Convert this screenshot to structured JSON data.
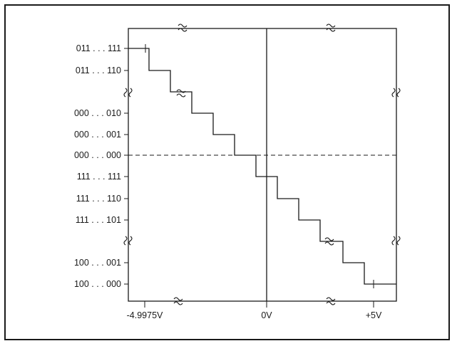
{
  "colors": {
    "ink": "#1a1a1a",
    "background": "#ffffff"
  },
  "y_codes": [
    {
      "code": "011 . . . 111"
    },
    {
      "code": "011 . . . 110"
    },
    {
      "code": "000 . . . 010"
    },
    {
      "code": "000 . . . 001"
    },
    {
      "code": "000 . . . 000"
    },
    {
      "code": "111 . . . 111"
    },
    {
      "code": "111 . . . 110"
    },
    {
      "code": "111 . . . 101"
    },
    {
      "code": "100 . . . 001"
    },
    {
      "code": "100 . . . 000"
    }
  ],
  "x_labels": [
    {
      "text": "-4.9975V"
    },
    {
      "text": "0V"
    },
    {
      "text": "+5V"
    }
  ]
}
